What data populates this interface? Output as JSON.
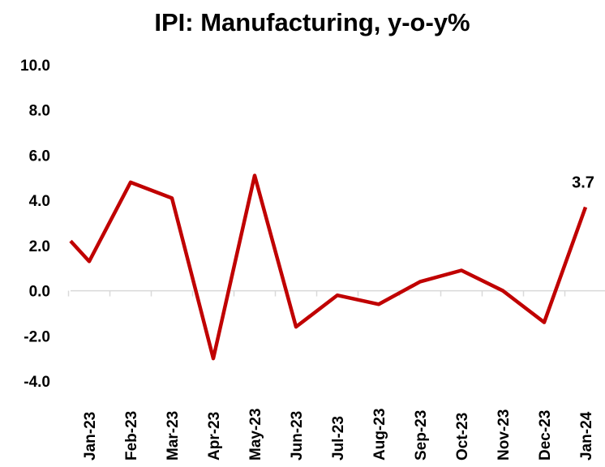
{
  "chart_data": {
    "type": "line",
    "title": "IPI: Manufacturing, y-o-y%",
    "categories": [
      null,
      "Jan-23",
      "Feb-23",
      "Mar-23",
      "Apr-23",
      "May-23",
      "Jun-23",
      "Jul-23",
      "Aug-23",
      "Sep-23",
      "Oct-23",
      "Nov-23",
      "Dec-23",
      "Jan-24"
    ],
    "series": [
      {
        "name": "IPI: Manufacturing",
        "color": "#c00000",
        "values": [
          2.2,
          1.3,
          4.8,
          4.1,
          -3.0,
          5.1,
          -1.6,
          -0.2,
          -0.6,
          0.4,
          0.9,
          0.0,
          -1.4,
          3.7
        ],
        "value_labels": [
          null,
          null,
          null,
          null,
          null,
          null,
          null,
          null,
          null,
          null,
          null,
          null,
          null,
          "3.7"
        ]
      }
    ],
    "ylim": [
      -4,
      10
    ],
    "yticks": [
      {
        "value": -4,
        "label": "-4.0"
      },
      {
        "value": -2,
        "label": "-2.0"
      },
      {
        "value": 0,
        "label": "0.0"
      },
      {
        "value": 2,
        "label": "2.0"
      },
      {
        "value": 4,
        "label": "4.0"
      },
      {
        "value": 6,
        "label": "6.0"
      },
      {
        "value": 8,
        "label": "8.0"
      },
      {
        "value": 10,
        "label": "10.0"
      }
    ],
    "grid": false
  }
}
